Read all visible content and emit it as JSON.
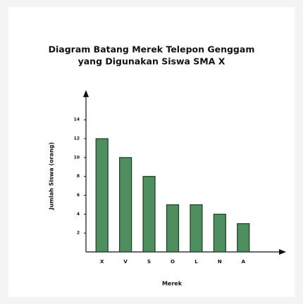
{
  "chart_data": {
    "type": "bar",
    "title": [
      "Diagram Batang Merek Telepon Genggam",
      "yang Digunakan Siswa SMA X"
    ],
    "x_label": "Merek",
    "y_label": "Jumlah Siswa (orang)",
    "categories": [
      "X",
      "V",
      "S",
      "O",
      "L",
      "N",
      "A"
    ],
    "values": [
      12,
      10,
      8,
      5,
      5,
      4,
      3
    ],
    "color": "#4f8f5f",
    "ylim": [
      0,
      17
    ],
    "yticks": [
      2,
      4,
      6,
      8,
      10,
      12,
      14
    ],
    "grid": false
  }
}
